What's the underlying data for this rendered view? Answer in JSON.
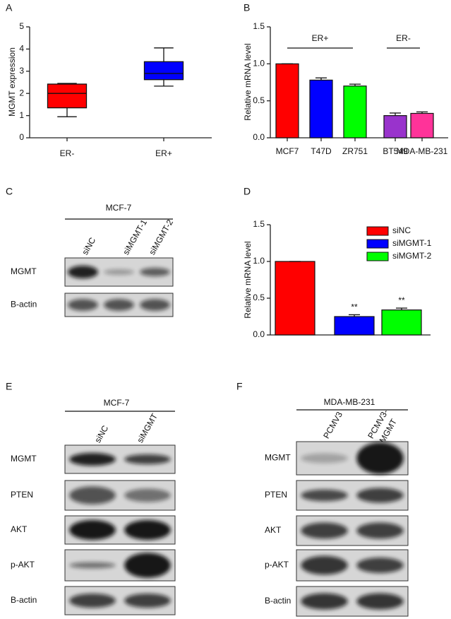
{
  "panel_labels": [
    "A",
    "B",
    "C",
    "D",
    "E",
    "F"
  ],
  "chart_data": [
    {
      "type": "box",
      "ylabel": "MGMT expression",
      "categories": [
        "ER-",
        "ER+"
      ],
      "colors": [
        "#ff0000",
        "#0000ff"
      ],
      "boxes": [
        {
          "min": 0.95,
          "q1": 1.35,
          "median": 2.0,
          "q3": 2.42,
          "max": 2.45
        },
        {
          "min": 2.33,
          "q1": 2.62,
          "median": 2.9,
          "q3": 3.43,
          "max": 4.05
        }
      ],
      "ylim": [
        0,
        5
      ],
      "yticks": [
        0,
        1,
        2,
        3,
        4,
        5
      ]
    },
    {
      "type": "bar",
      "ylabel": "Relative mRNA level",
      "categories": [
        "MCF7",
        "T47D",
        "ZR751",
        "BT549",
        "MDA-MB-231"
      ],
      "values": [
        1.0,
        0.78,
        0.7,
        0.3,
        0.33
      ],
      "errors": [
        0,
        0.03,
        0.025,
        0.035,
        0.02
      ],
      "colors": [
        "#ff0000",
        "#0000ff",
        "#00ff00",
        "#9933cc",
        "#ff3399"
      ],
      "groups": [
        "ER+",
        "ER-"
      ],
      "ylim": [
        0,
        1.5
      ],
      "yticks": [
        {
          "value": 0,
          "label": "0.0"
        },
        0.5,
        {
          "value": 1,
          "label": "1.0"
        },
        1.5
      ]
    },
    {
      "type": "bar",
      "ylabel": "Relative mRNA level",
      "legend": "upper right",
      "series": [
        {
          "name": "siNC",
          "color": "#ff0000",
          "values": [
            1.0
          ],
          "errors": [
            0
          ]
        },
        {
          "name": "siMGMT-1",
          "color": "#0000ff",
          "values": [
            0.25
          ],
          "errors": [
            0.025
          ],
          "significance": "**"
        },
        {
          "name": "siMGMT-2",
          "color": "#00ff00",
          "values": [
            0.34
          ],
          "errors": [
            0.025
          ],
          "significance": "**"
        }
      ],
      "ylim": [
        0,
        1.5
      ],
      "yticks": [
        {
          "value": 0,
          "label": "0.0"
        },
        0.5,
        {
          "value": 1,
          "label": "1.0"
        },
        1.5
      ]
    }
  ],
  "blots": [
    {
      "group": "MCF-7",
      "lanes": [
        [
          "siNC"
        ],
        [
          "siMGMT-1"
        ],
        [
          "siMGMT-2"
        ]
      ],
      "rows": [
        "MGMT",
        "B-actin"
      ]
    },
    {
      "group": "MCF-7",
      "lanes": [
        [
          "siNC"
        ],
        [
          "siMGMT"
        ]
      ],
      "rows": [
        "MGMT",
        "PTEN",
        "AKT",
        "p-AKT",
        "B-actin"
      ]
    },
    {
      "group": "MDA-MB-231",
      "lanes": [
        [
          "PCMV3"
        ],
        [
          "PCMV3-",
          "MGMT"
        ]
      ],
      "rows": [
        "MGMT",
        "PTEN",
        "AKT",
        "p-AKT",
        "B-actin"
      ]
    }
  ]
}
